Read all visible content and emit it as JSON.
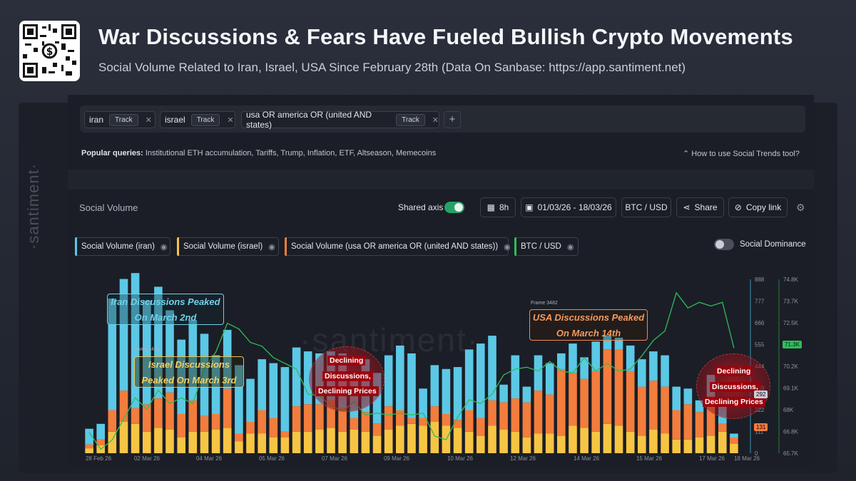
{
  "header": {
    "title": "War Discussions & Fears Have Fueled Bullish Crypto Movements",
    "subtitle": "Social Volume Related to Iran, Israel, USA Since February 28th (Data On Sanbase: https://app.santiment.net)"
  },
  "tracks": [
    {
      "query": "iran",
      "button": "Track"
    },
    {
      "query": "israel",
      "button": "Track"
    },
    {
      "query": "usa OR america OR (united AND states)",
      "button": "Track"
    }
  ],
  "popular": {
    "label": "Popular queries:",
    "items": "Institutional ETH accumulation, Tariffs, Trump, Inflation, ETF, Altseason, Memecoins",
    "howto": "How to use Social Trends tool?"
  },
  "toolbar": {
    "section_title": "Social Volume",
    "shared_axis": "Shared axis",
    "interval": "8h",
    "date_range": "01/03/26 - 18/03/26",
    "pair": "BTC / USD",
    "share": "Share",
    "copy_link": "Copy link"
  },
  "metrics": [
    {
      "label": "Social Volume (iran)",
      "color": "#5bc8e6"
    },
    {
      "label": "Social Volume (israel)",
      "color": "#f7c544"
    },
    {
      "label": "Social Volume (usa OR america OR (united AND states))",
      "color": "#f27d3c"
    },
    {
      "label": "BTC / USD",
      "color": "#2ebd5b"
    }
  ],
  "social_dominance": "Social Dominance",
  "watermark": "·santiment·",
  "annotations": {
    "iran": [
      "Iran Discussions Peaked",
      "On March 2nd"
    ],
    "israel": [
      "Israel Discussions",
      "Peaked On March 3rd"
    ],
    "usa": [
      "USA Discussions Peaked",
      "On March 14th"
    ],
    "frame": "Frame 3482",
    "declining": [
      "Declining",
      "Discussions,",
      "Declining Prices"
    ]
  },
  "chart_data": {
    "type": "bar",
    "stacked": true,
    "x_tick_labels": [
      "28 Feb 26",
      "02 Mar 26",
      "04 Mar 26",
      "05 Mar 26",
      "07 Mar 26",
      "09 Mar 26",
      "10 Mar 26",
      "12 Mar 26",
      "14 Mar 26",
      "15 Mar 26",
      "17 Mar 26",
      "18 Mar 26"
    ],
    "y_left_ticks": [
      888,
      777,
      666,
      555,
      444,
      333,
      222,
      111,
      0
    ],
    "y_right_ticks": [
      "74.8K",
      "73.7K",
      "72.5K",
      "71.3K",
      "70.2K",
      "69.1K",
      "68K",
      "66.8K",
      "65.7K"
    ],
    "ylim_left": [
      0,
      888
    ],
    "ylim_right": [
      65700,
      74800
    ],
    "btc_current_label": "71.3K",
    "last_badges": [
      "292",
      "131"
    ],
    "series": [
      {
        "name": "Social Volume (israel)",
        "color": "#f7c544",
        "values": [
          25,
          40,
          110,
          160,
          150,
          110,
          130,
          120,
          80,
          110,
          110,
          120,
          130,
          60,
          100,
          100,
          80,
          80,
          110,
          110,
          120,
          130,
          110,
          120,
          110,
          90,
          120,
          140,
          150,
          140,
          160,
          140,
          130,
          110,
          90,
          140,
          120,
          110,
          80,
          100,
          100,
          90,
          140,
          130,
          110,
          150,
          140,
          110,
          90,
          120,
          100,
          70,
          70,
          80,
          90,
          110,
          50
        ]
      },
      {
        "name": "Social Volume (usa OR america OR (united AND states))",
        "color": "#f27d3c",
        "values": [
          20,
          30,
          110,
          160,
          80,
          140,
          150,
          190,
          120,
          160,
          80,
          80,
          200,
          40,
          60,
          120,
          100,
          30,
          130,
          140,
          130,
          140,
          120,
          60,
          100,
          60,
          120,
          80,
          30,
          40,
          80,
          60,
          40,
          110,
          90,
          130,
          140,
          170,
          180,
          220,
          200,
          340,
          270,
          250,
          310,
          380,
          390,
          310,
          250,
          250,
          240,
          150,
          180,
          130,
          200,
          40,
          30
        ]
      },
      {
        "name": "Social Volume (iran)",
        "color": "#5bc8e6",
        "values": [
          80,
          80,
          570,
          570,
          690,
          530,
          570,
          420,
          380,
          410,
          420,
          300,
          300,
          350,
          220,
          260,
          280,
          330,
          300,
          270,
          260,
          250,
          280,
          230,
          270,
          260,
          260,
          330,
          330,
          150,
          210,
          230,
          270,
          310,
          380,
          330,
          90,
          220,
          80,
          180,
          160,
          80,
          150,
          110,
          150,
          70,
          60,
          130,
          140,
          150,
          160,
          120,
          80,
          60,
          110,
          90,
          20
        ]
      },
      {
        "name": "BTC / USD",
        "color": "#2ebd5b",
        "axis": "right",
        "values": [
          66800,
          65900,
          66400,
          67500,
          68600,
          68000,
          69000,
          68300,
          68600,
          68300,
          70100,
          71000,
          72500,
          72200,
          71500,
          71300,
          70700,
          70400,
          70100,
          68800,
          68700,
          68200,
          67900,
          68400,
          67700,
          67800,
          67700,
          67800,
          67700,
          67800,
          66600,
          66400,
          67600,
          68500,
          68300,
          68800,
          69800,
          70100,
          70200,
          70000,
          70500,
          70000,
          69900,
          70700,
          70000,
          70400,
          70000,
          70100,
          70800,
          71600,
          72100,
          74100,
          73300,
          73600,
          73400,
          73600,
          71200
        ]
      }
    ]
  }
}
